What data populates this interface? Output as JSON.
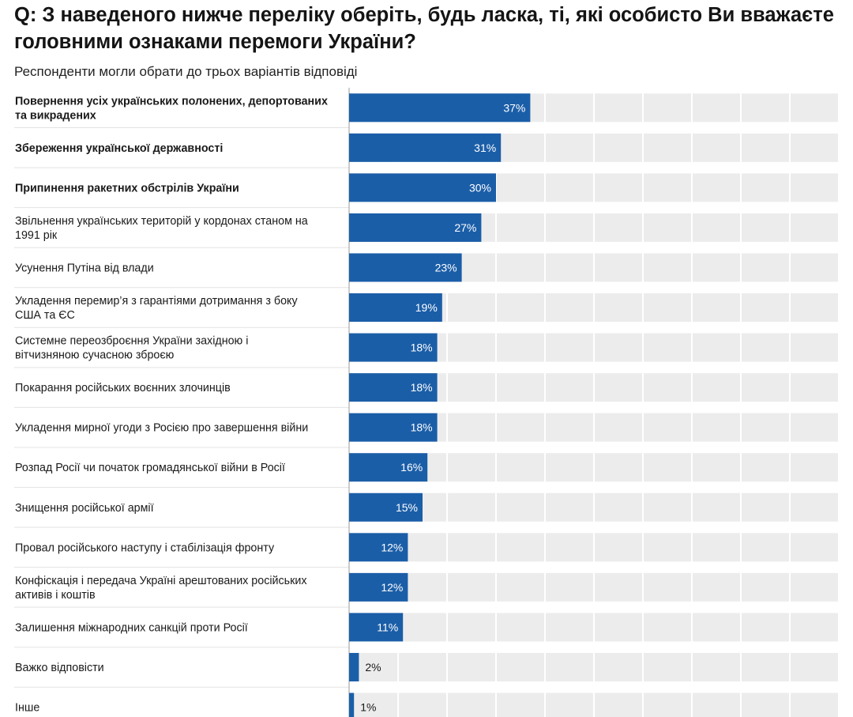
{
  "chart_data": {
    "type": "bar",
    "orientation": "horizontal",
    "title": "Q: З наведеного нижче переліку оберіть, будь ласка, ті, які особисто Ви вважаєте головними ознаками перемоги України?",
    "subtitle": "Респонденти могли обрати до трьох варіантів відповіді",
    "xlim": [
      0,
      100
    ],
    "value_suffix": "%",
    "bar_color": "#1b5ea8",
    "track_color": "#ececec",
    "categories": [
      [
        "Повернення усіх українських полонених, депортованих",
        "та викрадених"
      ],
      [
        "Збереження української державності"
      ],
      [
        "Припинення ракетних обстрілів України"
      ],
      [
        "Звільнення українських територій у кордонах станом на",
        "1991 рік"
      ],
      [
        "Усунення Путіна від влади"
      ],
      [
        "Укладення перемир’я з гарантіями дотримання з боку",
        "США та ЄС"
      ],
      [
        "Системне переозброєння України західною і",
        "вітчизняною сучасною зброєю"
      ],
      [
        "Покарання російських воєнних злочинців"
      ],
      [
        "Укладення мирної угоди з Росією про завершення війни"
      ],
      [
        "Розпад Росії чи початок громадянської війни в Росії"
      ],
      [
        "Знищення російської армії"
      ],
      [
        "Провал російського наступу і стабілізація фронту"
      ],
      [
        "Конфіскація і передача Україні арештованих російських",
        "активів і коштів"
      ],
      [
        "Залишення міжнародних санкцій проти Росії"
      ],
      [
        "Важко відповісти"
      ],
      [
        "Інше"
      ]
    ],
    "bold_categories": [
      0,
      1,
      2
    ],
    "values": [
      37,
      31,
      30,
      27,
      23,
      19,
      18,
      18,
      18,
      16,
      15,
      12,
      12,
      11,
      2,
      1
    ]
  }
}
